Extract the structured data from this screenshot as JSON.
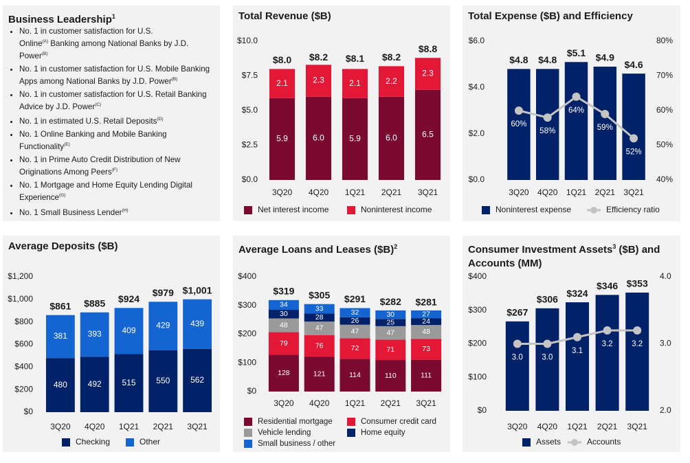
{
  "business_leadership": {
    "title": "Business Leadership",
    "title_note": "1",
    "items": [
      [
        {
          "text": "No. 1 in customer satisfaction for U.S. Online"
        },
        {
          "note": "(A)"
        },
        {
          "text": "Banking among National Banks by J.D. Power"
        },
        {
          "note": "(B)"
        }
      ],
      [
        {
          "text": "No. 1 in customer satisfaction for U.S. Mobile Banking Apps among National Banks by J.D. Power"
        },
        {
          "note": "(B)"
        }
      ],
      [
        {
          "text": "No. 1 in customer satisfaction for U.S. Retail Banking Advice by J.D. Power"
        },
        {
          "note": "(C)"
        }
      ],
      [
        {
          "text": "No. 1 in estimated U.S. Retail Deposits"
        },
        {
          "note": "(D)"
        }
      ],
      [
        {
          "text": "No. 1 Online Banking and Mobile Banking Functionality"
        },
        {
          "note": "(E)"
        }
      ],
      [
        {
          "text": "No. 1 in Prime Auto Credit Distribution of New Originations Among Peers"
        },
        {
          "note": "(F)"
        }
      ],
      [
        {
          "text": "No. 1 Mortgage and Home Equity Lending Digital Experience"
        },
        {
          "note": "(G)"
        }
      ],
      [
        {
          "text": "No. 1 Small Business Lender"
        },
        {
          "note": "(H)"
        }
      ]
    ]
  },
  "chart_data": [
    {
      "type": "bar",
      "stacked": true,
      "title": "Total Revenue ($B)",
      "categories": [
        "3Q20",
        "4Q20",
        "1Q21",
        "2Q21",
        "3Q21"
      ],
      "series": [
        {
          "name": "Net interest income",
          "color": "#7b0a31",
          "values": [
            5.9,
            6.0,
            5.9,
            6.0,
            6.5
          ],
          "value_labels": [
            "5.9",
            "6.0",
            "5.9",
            "6.0",
            "6.5"
          ]
        },
        {
          "name": "Noninterest income",
          "color": "#e31837",
          "values": [
            2.1,
            2.3,
            2.1,
            2.2,
            2.3
          ]
        }
      ],
      "totals": {
        "values": [
          8.0,
          8.2,
          8.1,
          8.2,
          8.8
        ],
        "value_labels": [
          "$8.0",
          "$8.2",
          "$8.1",
          "$8.2",
          "$8.8"
        ]
      },
      "ylim": [
        0,
        10
      ],
      "yticks": [
        {
          "value": 0,
          "label": "$0.0"
        },
        {
          "value": 2.5,
          "label": "$2.5"
        },
        {
          "value": 5,
          "label": "$5.0"
        },
        {
          "value": 7.5,
          "label": "$7.5"
        },
        {
          "value": 10,
          "label": "$10.0"
        }
      ]
    },
    {
      "type": "bar",
      "title": "Total Expense ($B) and Efficiency",
      "categories": [
        "3Q20",
        "4Q20",
        "1Q21",
        "2Q21",
        "3Q21"
      ],
      "series": [
        {
          "name": "Noninterest expense",
          "color": "#012169",
          "values": [
            4.8,
            4.8,
            5.1,
            4.9,
            4.6
          ],
          "value_labels": [
            "$4.8",
            "$4.8",
            "$5.1",
            "$4.9",
            "$4.6"
          ]
        },
        {
          "name": "Efficiency ratio",
          "type": "line",
          "axis": "y2",
          "color": "#c4c4c4",
          "values": [
            60,
            58,
            64,
            59,
            52
          ],
          "value_labels": [
            "60%",
            "58%",
            "64%",
            "59%",
            "52%"
          ]
        }
      ],
      "ylim": [
        0,
        6
      ],
      "yticks": [
        {
          "value": 0,
          "label": "$0.0"
        },
        {
          "value": 2,
          "label": "$2.0"
        },
        {
          "value": 4,
          "label": "$4.0"
        },
        {
          "value": 6,
          "label": "$6.0"
        }
      ],
      "y2lim": [
        40,
        80
      ],
      "y2ticks": [
        {
          "value": 40,
          "label": "40%"
        },
        {
          "value": 50,
          "label": "50%"
        },
        {
          "value": 60,
          "label": "60%"
        },
        {
          "value": 70,
          "label": "70%"
        },
        {
          "value": 80,
          "label": "80%"
        }
      ]
    },
    {
      "type": "bar",
      "stacked": true,
      "title": "Average Deposits ($B)",
      "categories": [
        "3Q20",
        "4Q20",
        "1Q21",
        "2Q21",
        "3Q21"
      ],
      "series": [
        {
          "name": "Checking",
          "color": "#012169",
          "values": [
            480,
            492,
            515,
            550,
            562
          ]
        },
        {
          "name": "Other",
          "color": "#1465d1",
          "values": [
            381,
            393,
            409,
            429,
            439
          ]
        }
      ],
      "totals": {
        "values": [
          861,
          885,
          924,
          979,
          1001
        ],
        "value_labels": [
          "$861",
          "$885",
          "$924",
          "$979",
          "$1,001"
        ]
      },
      "ylim": [
        0,
        1200
      ],
      "yticks": [
        {
          "value": 0,
          "label": "$0"
        },
        {
          "value": 200,
          "label": "$200"
        },
        {
          "value": 400,
          "label": "$400"
        },
        {
          "value": 600,
          "label": "$600"
        },
        {
          "value": 800,
          "label": "$800"
        },
        {
          "value": 1000,
          "label": "$1,000"
        },
        {
          "value": 1200,
          "label": "$1,200"
        }
      ]
    },
    {
      "type": "bar",
      "stacked": true,
      "title": "Average Loans and Leases ($B)",
      "title_note": "2",
      "categories": [
        "3Q20",
        "4Q20",
        "1Q21",
        "2Q21",
        "3Q21"
      ],
      "series": [
        {
          "name": "Residential mortgage",
          "color": "#7b0a31",
          "values": [
            128,
            121,
            114,
            110,
            111
          ]
        },
        {
          "name": "Consumer credit card",
          "color": "#e31837",
          "values": [
            79,
            76,
            72,
            71,
            73
          ]
        },
        {
          "name": "Vehicle lending",
          "color": "#9a9a9a",
          "values": [
            48,
            47,
            47,
            47,
            48
          ]
        },
        {
          "name": "Home equity",
          "color": "#012169",
          "values": [
            30,
            28,
            26,
            25,
            24
          ]
        },
        {
          "name": "Small business / other",
          "color": "#1465d1",
          "values": [
            34,
            33,
            32,
            30,
            27
          ]
        }
      ],
      "totals": {
        "values": [
          319,
          305,
          291,
          282,
          281
        ],
        "value_labels": [
          "$319",
          "$305",
          "$291",
          "$282",
          "$281"
        ]
      },
      "ylim": [
        0,
        400
      ],
      "yticks": [
        {
          "value": 0,
          "label": "$0"
        },
        {
          "value": 100,
          "label": "$100"
        },
        {
          "value": 200,
          "label": "$200"
        },
        {
          "value": 300,
          "label": "$300"
        },
        {
          "value": 400,
          "label": "$400"
        }
      ]
    },
    {
      "type": "bar",
      "title": "Consumer Investment Assets",
      "title_note": "3",
      "title_suffix": "($B) and Accounts (MM)",
      "categories": [
        "3Q20",
        "4Q20",
        "1Q21",
        "2Q21",
        "3Q21"
      ],
      "series": [
        {
          "name": "Assets",
          "color": "#012169",
          "values": [
            267,
            306,
            324,
            346,
            353
          ],
          "value_labels": [
            "$267",
            "$306",
            "$324",
            "$346",
            "$353"
          ]
        },
        {
          "name": "Accounts",
          "type": "line",
          "axis": "y2",
          "color": "#c4c4c4",
          "values": [
            3.0,
            3.0,
            3.1,
            3.2,
            3.2
          ],
          "value_labels": [
            "3.0",
            "3.0",
            "3.1",
            "3.2",
            "3.2"
          ]
        }
      ],
      "ylim": [
        0,
        400
      ],
      "yticks": [
        {
          "value": 0,
          "label": "$0"
        },
        {
          "value": 100,
          "label": "$100"
        },
        {
          "value": 200,
          "label": "$200"
        },
        {
          "value": 300,
          "label": "$300"
        },
        {
          "value": 400,
          "label": "$400"
        }
      ],
      "y2lim": [
        2,
        4
      ],
      "y2ticks": [
        {
          "value": 2,
          "label": "2.0"
        },
        {
          "value": 3,
          "label": "3.0"
        },
        {
          "value": 4,
          "label": "4.0"
        }
      ]
    }
  ]
}
